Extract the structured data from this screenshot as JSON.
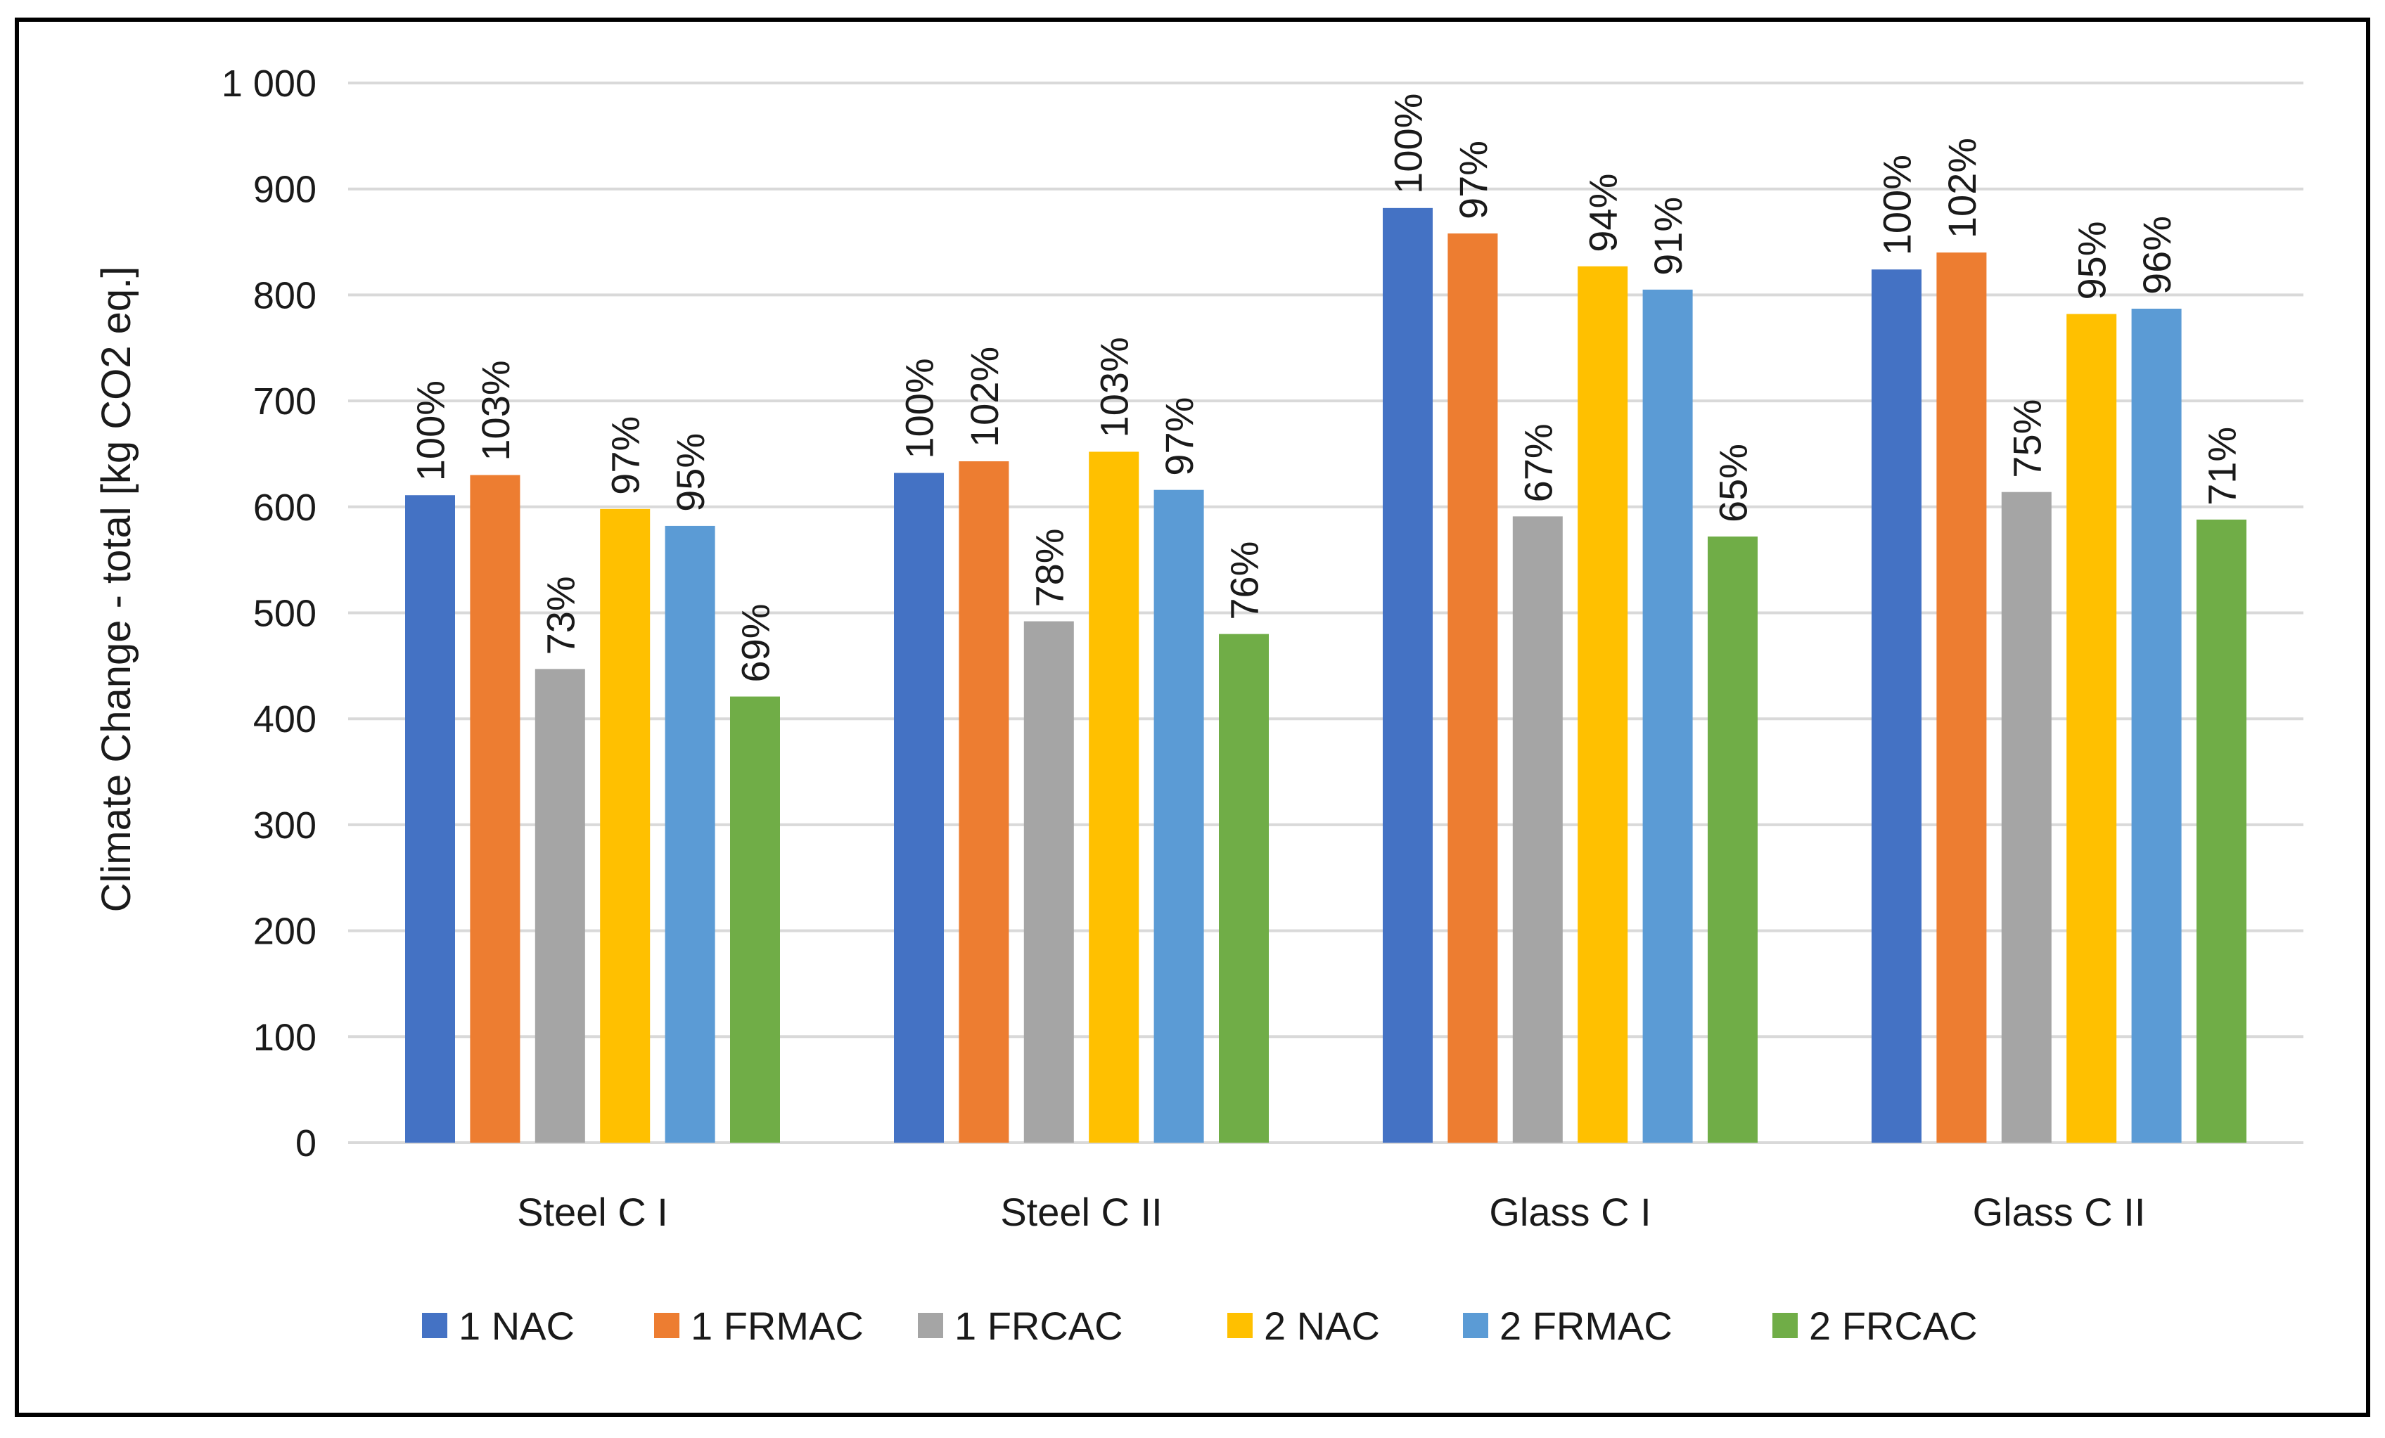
{
  "chart_data": {
    "type": "bar",
    "title": "",
    "xlabel": "",
    "ylabel": "Climate Change - total [kg CO2 eq.]",
    "ylim": [
      0,
      1000
    ],
    "yticks": [
      {
        "value": 0,
        "label": "0"
      },
      {
        "value": 100,
        "label": "100"
      },
      {
        "value": 200,
        "label": "200"
      },
      {
        "value": 300,
        "label": "300"
      },
      {
        "value": 400,
        "label": "400"
      },
      {
        "value": 500,
        "label": "500"
      },
      {
        "value": 600,
        "label": "600"
      },
      {
        "value": 700,
        "label": "700"
      },
      {
        "value": 800,
        "label": "800"
      },
      {
        "value": 900,
        "label": "900"
      },
      {
        "value": 1000,
        "label": "1 000"
      }
    ],
    "grid": true,
    "legend_position": "bottom",
    "categories": [
      "Steel C I",
      "Steel C II",
      "Glass C I",
      "Glass C II"
    ],
    "series": [
      {
        "name": "1 NAC",
        "color": "#4472C4",
        "values": [
          611,
          632,
          882,
          824
        ],
        "labels": [
          "100%",
          "100%",
          "100%",
          "100%"
        ]
      },
      {
        "name": "1 FRMAC",
        "color": "#ED7D31",
        "values": [
          630,
          643,
          858,
          840
        ],
        "labels": [
          "103%",
          "102%",
          "97%",
          "102%"
        ]
      },
      {
        "name": "1 FRCAC",
        "color": "#A5A5A5",
        "values": [
          447,
          492,
          591,
          614
        ],
        "labels": [
          "73%",
          "78%",
          "67%",
          "75%"
        ]
      },
      {
        "name": "2 NAC",
        "color": "#FFC000",
        "values": [
          598,
          652,
          827,
          782
        ],
        "labels": [
          "97%",
          "103%",
          "94%",
          "95%"
        ]
      },
      {
        "name": "2 FRMAC",
        "color": "#5B9BD5",
        "values": [
          582,
          616,
          805,
          787
        ],
        "labels": [
          "95%",
          "97%",
          "91%",
          "96%"
        ]
      },
      {
        "name": "2 FRCAC",
        "color": "#70AD47",
        "values": [
          421,
          480,
          572,
          588
        ],
        "labels": [
          "69%",
          "76%",
          "65%",
          "71%"
        ]
      }
    ]
  }
}
